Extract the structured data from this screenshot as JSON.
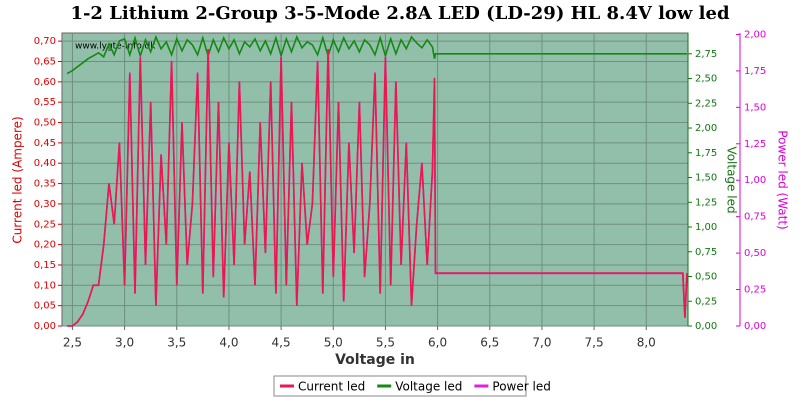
{
  "chart_data": {
    "type": "line",
    "title": "1-2 Lithium 2-Group 3-5-Mode 2.8A LED (LD-29) HL 8.4V low led",
    "xlabel": "Voltage in",
    "ylabel": "Current led (Ampere)",
    "y2label": "Voltage led",
    "y3label": "Power led (Watt)",
    "watermark": "www.lygte-info.dk",
    "grid": true,
    "legend": "bottom",
    "x": [
      2.45,
      2.5,
      2.55,
      2.6,
      2.65,
      2.7,
      2.75,
      2.8,
      2.85,
      2.9,
      2.95,
      3.0,
      3.05,
      3.1,
      3.15,
      3.2,
      3.25,
      3.3,
      3.35,
      3.4,
      3.45,
      3.5,
      3.55,
      3.6,
      3.65,
      3.7,
      3.75,
      3.8,
      3.85,
      3.9,
      3.95,
      4.0,
      4.05,
      4.1,
      4.15,
      4.2,
      4.25,
      4.3,
      4.35,
      4.4,
      4.45,
      4.5,
      4.55,
      4.6,
      4.65,
      4.7,
      4.75,
      4.8,
      4.85,
      4.9,
      4.95,
      5.0,
      5.05,
      5.1,
      5.15,
      5.2,
      5.25,
      5.3,
      5.35,
      5.4,
      5.45,
      5.5,
      5.55,
      5.6,
      5.65,
      5.7,
      5.75,
      5.8,
      5.85,
      5.9,
      5.95,
      5.97,
      5.98,
      8.35,
      8.37,
      8.39
    ],
    "series": [
      {
        "name": "Current led",
        "color": "#e8194f",
        "axis": "y",
        "values": [
          0,
          0,
          0.01,
          0.03,
          0.06,
          0.1,
          0.1,
          0.2,
          0.35,
          0.25,
          0.45,
          0.1,
          0.62,
          0.08,
          0.66,
          0.15,
          0.55,
          0.05,
          0.42,
          0.2,
          0.65,
          0.1,
          0.5,
          0.15,
          0.3,
          0.62,
          0.08,
          0.68,
          0.12,
          0.55,
          0.07,
          0.45,
          0.15,
          0.6,
          0.2,
          0.38,
          0.1,
          0.5,
          0.18,
          0.6,
          0.08,
          0.66,
          0.1,
          0.55,
          0.05,
          0.4,
          0.2,
          0.3,
          0.65,
          0.08,
          0.68,
          0.12,
          0.55,
          0.06,
          0.45,
          0.18,
          0.55,
          0.12,
          0.3,
          0.62,
          0.08,
          0.66,
          0.1,
          0.6,
          0.15,
          0.45,
          0.05,
          0.25,
          0.4,
          0.15,
          0.38,
          0.61,
          0.13,
          0.13,
          0.02,
          0.13
        ]
      },
      {
        "name": "Voltage led",
        "color": "#138a13",
        "axis": "y2",
        "values": [
          2.55,
          2.58,
          2.62,
          2.66,
          2.7,
          2.73,
          2.76,
          2.72,
          2.85,
          2.74,
          2.88,
          2.9,
          2.74,
          2.91,
          2.73,
          2.89,
          2.77,
          2.92,
          2.8,
          2.87,
          2.74,
          2.9,
          2.78,
          2.89,
          2.84,
          2.74,
          2.91,
          2.73,
          2.89,
          2.77,
          2.91,
          2.8,
          2.89,
          2.75,
          2.87,
          2.82,
          2.9,
          2.78,
          2.88,
          2.75,
          2.91,
          2.73,
          2.9,
          2.77,
          2.92,
          2.81,
          2.87,
          2.84,
          2.74,
          2.91,
          2.73,
          2.89,
          2.77,
          2.91,
          2.8,
          2.88,
          2.77,
          2.89,
          2.84,
          2.74,
          2.91,
          2.73,
          2.9,
          2.75,
          2.89,
          2.8,
          2.92,
          2.86,
          2.81,
          2.89,
          2.82,
          2.7,
          2.75,
          2.75,
          2.75,
          2.75
        ]
      },
      {
        "name": "Power led",
        "color": "#e020e0",
        "axis": "y3",
        "values": [
          0,
          0,
          0.03,
          0.08,
          0.17,
          0.28,
          0.28,
          0.55,
          0.98,
          0.7,
          1.26,
          0.28,
          1.74,
          0.22,
          1.85,
          0.42,
          1.54,
          0.14,
          1.18,
          0.56,
          1.82,
          0.28,
          1.4,
          0.42,
          0.84,
          1.74,
          0.22,
          1.9,
          0.34,
          1.54,
          0.2,
          1.26,
          0.42,
          1.68,
          0.56,
          1.06,
          0.28,
          1.4,
          0.5,
          1.68,
          0.22,
          1.85,
          0.28,
          1.54,
          0.14,
          1.12,
          0.56,
          0.84,
          1.82,
          0.22,
          1.9,
          0.34,
          1.54,
          0.17,
          1.26,
          0.5,
          1.54,
          0.34,
          0.84,
          1.74,
          0.22,
          1.85,
          0.28,
          1.68,
          0.42,
          1.26,
          0.14,
          0.7,
          1.12,
          0.42,
          1.06,
          1.65,
          0.36,
          0.36,
          0.06,
          0.36
        ]
      }
    ],
    "xlim": [
      2.4,
      8.4
    ],
    "xticks": [
      {
        "value": 2.5,
        "label": "2,5"
      },
      {
        "value": 3.0,
        "label": "3,0"
      },
      {
        "value": 3.5,
        "label": "3,5"
      },
      {
        "value": 4.0,
        "label": "4,0"
      },
      {
        "value": 4.5,
        "label": "4,5"
      },
      {
        "value": 5.0,
        "label": "5,0"
      },
      {
        "value": 5.5,
        "label": "5,5"
      },
      {
        "value": 6.0,
        "label": "6,0"
      },
      {
        "value": 6.5,
        "label": "6,5"
      },
      {
        "value": 7.0,
        "label": "7,0"
      },
      {
        "value": 7.5,
        "label": "7,5"
      },
      {
        "value": 8.0,
        "label": "8,0"
      }
    ],
    "ylim": [
      0,
      0.72
    ],
    "yticks": [
      {
        "value": 0,
        "label": "0,00"
      },
      {
        "value": 0.05,
        "label": "0,05"
      },
      {
        "value": 0.1,
        "label": "0,10"
      },
      {
        "value": 0.15,
        "label": "0,15"
      },
      {
        "value": 0.2,
        "label": "0,20"
      },
      {
        "value": 0.25,
        "label": "0,25"
      },
      {
        "value": 0.3,
        "label": "0,30"
      },
      {
        "value": 0.35,
        "label": "0,35"
      },
      {
        "value": 0.4,
        "label": "0,40"
      },
      {
        "value": 0.45,
        "label": "0,45"
      },
      {
        "value": 0.5,
        "label": "0,50"
      },
      {
        "value": 0.55,
        "label": "0,55"
      },
      {
        "value": 0.6,
        "label": "0,60"
      },
      {
        "value": 0.65,
        "label": "0,65"
      },
      {
        "value": 0.7,
        "label": "0,70"
      }
    ],
    "y2lim": [
      0,
      2.96
    ],
    "y2ticks": [
      {
        "value": 0,
        "label": "0,00"
      },
      {
        "value": 0.25,
        "label": "0,25"
      },
      {
        "value": 0.5,
        "label": "0,50"
      },
      {
        "value": 0.75,
        "label": "0,75"
      },
      {
        "value": 1.0,
        "label": "1,00"
      },
      {
        "value": 1.25,
        "label": "1,25"
      },
      {
        "value": 1.5,
        "label": "1,50"
      },
      {
        "value": 1.75,
        "label": "1,75"
      },
      {
        "value": 2.0,
        "label": "2,00"
      },
      {
        "value": 2.25,
        "label": "2,25"
      },
      {
        "value": 2.5,
        "label": "2,50"
      },
      {
        "value": 2.75,
        "label": "2,75"
      }
    ],
    "y3lim": [
      0,
      2.01
    ],
    "y3ticks": [
      {
        "value": 0,
        "label": "0,00"
      },
      {
        "value": 0.25,
        "label": "0,25"
      },
      {
        "value": 0.5,
        "label": "0,50"
      },
      {
        "value": 0.75,
        "label": "0,75"
      },
      {
        "value": 1.0,
        "label": "1,00"
      },
      {
        "value": 1.25,
        "label": "1,25"
      },
      {
        "value": 1.5,
        "label": "1,50"
      },
      {
        "value": 1.75,
        "label": "1,75"
      },
      {
        "value": 2.0,
        "label": "2,00"
      }
    ]
  }
}
